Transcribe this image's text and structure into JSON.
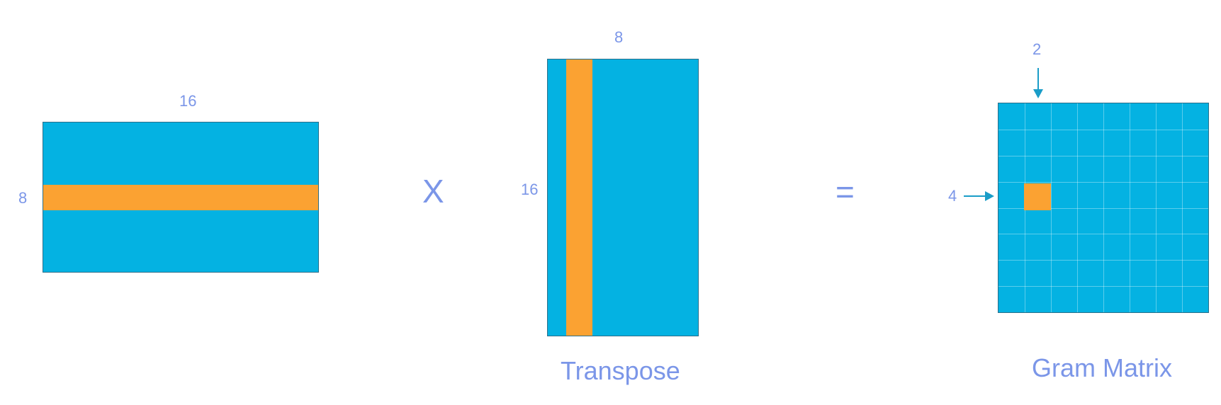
{
  "input_matrix": {
    "width_label": "16",
    "height_label": "8"
  },
  "operator_multiply": "X",
  "transpose_matrix": {
    "width_label": "8",
    "height_label": "16",
    "caption": "Transpose"
  },
  "operator_equals": "=",
  "gram_matrix": {
    "col_index_label": "2",
    "row_index_label": "4",
    "caption": "Gram Matrix",
    "grid_cells": 8
  },
  "colors": {
    "matrix": "#04b2e2",
    "highlight": "#fba232",
    "label": "#7b96e8",
    "arrow": "#1a9dc8"
  }
}
